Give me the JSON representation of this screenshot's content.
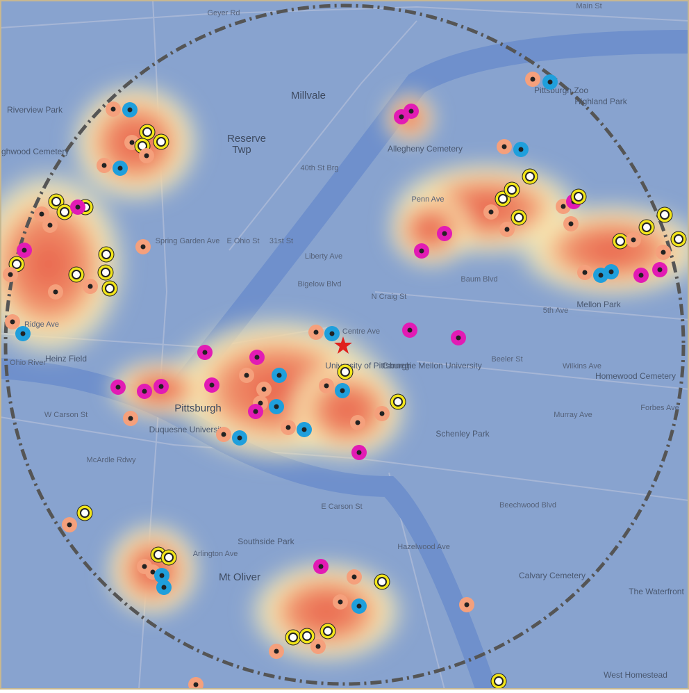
{
  "map": {
    "labels": [
      "Millvale",
      "Reserve",
      "Twp",
      "Riverview Park",
      "Highwood Cemetery",
      "Allegheny Cemetery",
      "Pittsburgh Zoo",
      "Highland Park",
      "Heinz Field",
      "Pittsburgh",
      "Duquesne University",
      "University of Pittsburgh",
      "Carnegie Mellon University",
      "Schenley Park",
      "Mellon Park",
      "Homewood Cemetery",
      "Southside Park",
      "Mt Oliver",
      "Calvary Cemetery",
      "West Homestead",
      "The Waterfront",
      "Liberty Ave",
      "Penn Ave",
      "Baum Blvd",
      "Centre Ave",
      "Bigelow Blvd",
      "Forbes Ave",
      "Beeler St",
      "Wilkins Ave",
      "E Carson St",
      "Arlington Ave",
      "Main St",
      "Geyer Rd",
      "N Craig St",
      "5th Ave",
      "Ohio River",
      "W Carson St",
      "E Ohio St",
      "31st St",
      "40th St Brg",
      "Spring Garden Ave",
      "Murray Ave",
      "Hazelwood Ave",
      "Beechwood Blvd",
      "Ridge Ave",
      "McArdle Rdwy"
    ]
  }
}
